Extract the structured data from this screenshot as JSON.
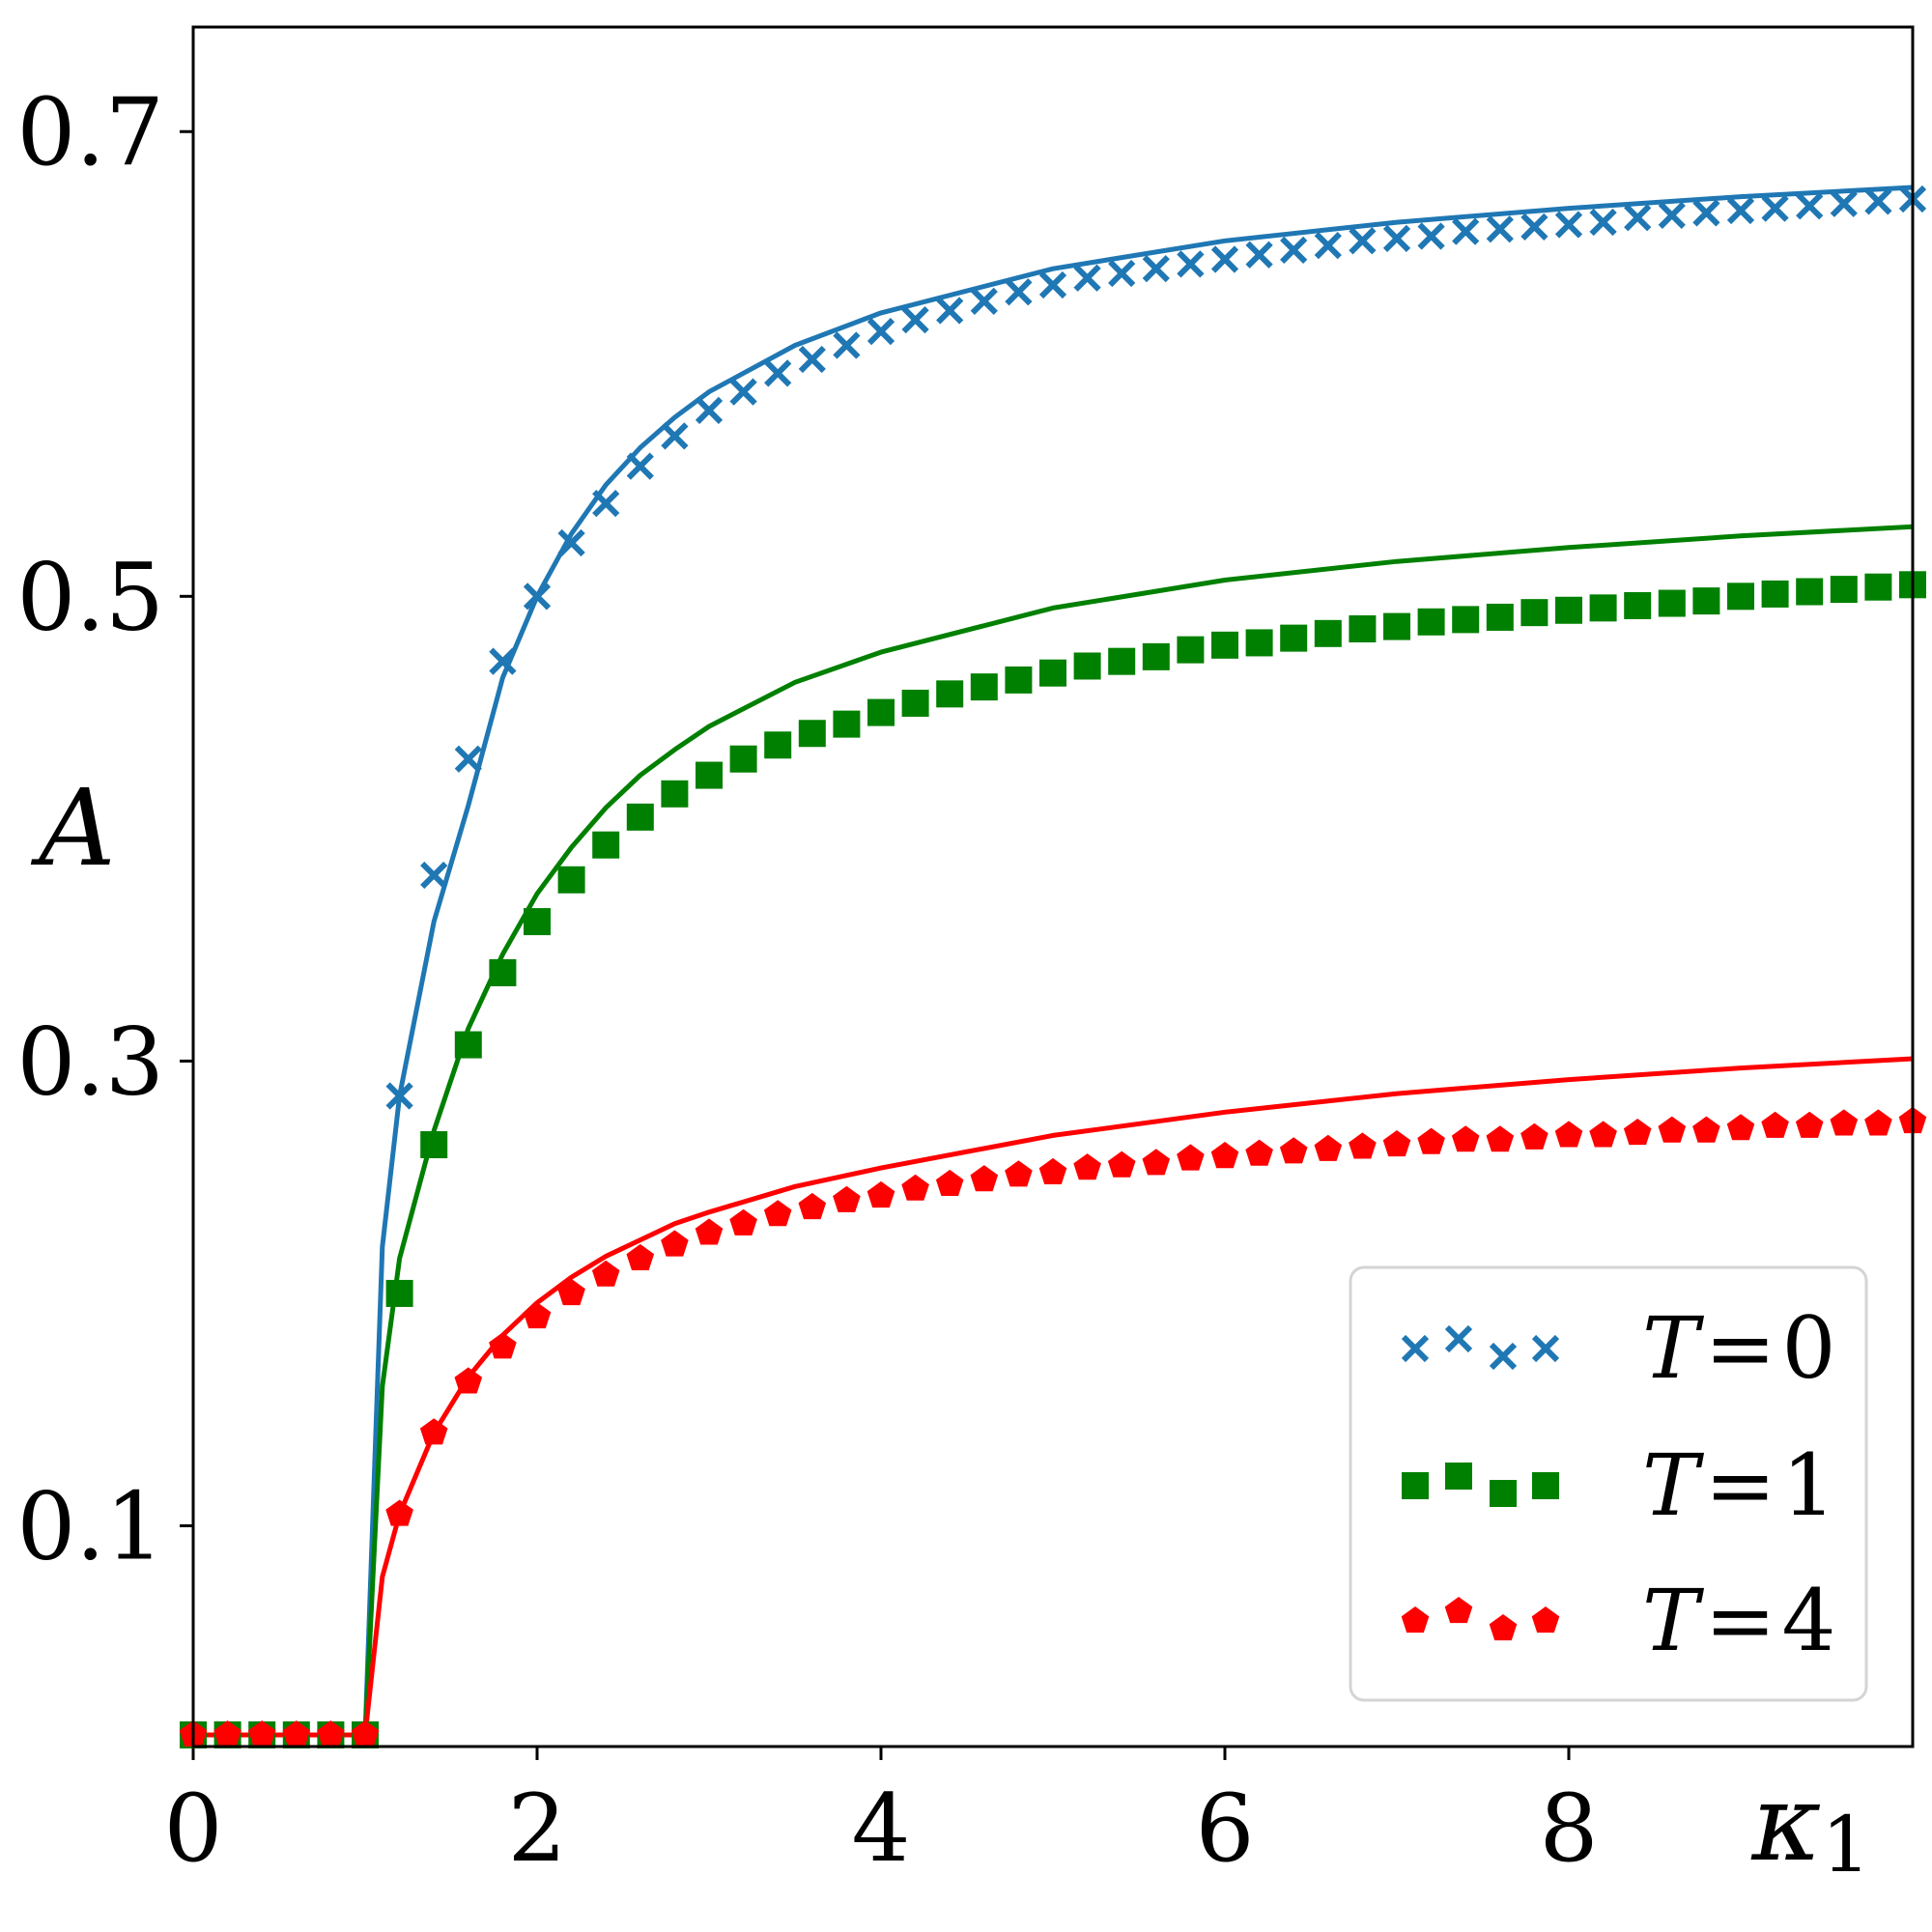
{
  "chart_data": {
    "type": "line",
    "title": "",
    "xlabel": "κ",
    "xlabel_sub": "1",
    "ylabel": "A",
    "xlim": [
      0,
      10
    ],
    "ylim": [
      0.005,
      0.745
    ],
    "x_ticks": [
      0,
      2,
      4,
      6,
      8
    ],
    "x_tick_labels": [
      "0",
      "2",
      "4",
      "6",
      "8"
    ],
    "y_ticks": [
      0.1,
      0.3,
      0.5,
      0.7
    ],
    "y_tick_labels": [
      "0.1",
      "0.3",
      "0.5",
      "0.7"
    ],
    "grid": false,
    "legend_position": "bottom-right",
    "series": [
      {
        "name": "T = 0",
        "name_parts": [
          "T",
          "=",
          "0"
        ],
        "color": "#1f77b4",
        "marker": "x",
        "line_x": [
          0,
          0.99,
          1.0,
          1.1,
          1.2,
          1.4,
          1.6,
          1.8,
          2.0,
          2.2,
          2.4,
          2.6,
          2.8,
          3.0,
          3.5,
          4.0,
          5.0,
          6.0,
          7.0,
          8.0,
          9.0,
          10.0
        ],
        "line_y": [
          0.01,
          0.01,
          0.01,
          0.22,
          0.285,
          0.36,
          0.41,
          0.465,
          0.5,
          0.527,
          0.548,
          0.564,
          0.577,
          0.588,
          0.608,
          0.622,
          0.641,
          0.653,
          0.661,
          0.667,
          0.672,
          0.676
        ],
        "marker_x": [
          1.2,
          1.4,
          1.6,
          1.8,
          2.0,
          2.2,
          2.4,
          2.6,
          2.8,
          3.0,
          3.2,
          3.4,
          3.6,
          3.8,
          4.0,
          4.2,
          4.4,
          4.6,
          4.8,
          5.0,
          5.2,
          5.4,
          5.6,
          5.8,
          6.0,
          6.2,
          6.4,
          6.6,
          6.8,
          7.0,
          7.2,
          7.4,
          7.6,
          7.8,
          8.0,
          8.2,
          8.4,
          8.6,
          8.8,
          9.0,
          9.2,
          9.4,
          9.6,
          9.8,
          10.0
        ],
        "marker_y": [
          0.285,
          0.38,
          0.43,
          0.472,
          0.5,
          0.523,
          0.54,
          0.556,
          0.569,
          0.58,
          0.588,
          0.596,
          0.602,
          0.608,
          0.614,
          0.619,
          0.623,
          0.627,
          0.631,
          0.634,
          0.637,
          0.639,
          0.641,
          0.643,
          0.645,
          0.647,
          0.649,
          0.651,
          0.653,
          0.654,
          0.655,
          0.657,
          0.658,
          0.659,
          0.66,
          0.661,
          0.663,
          0.664,
          0.665,
          0.666,
          0.667,
          0.668,
          0.669,
          0.67,
          0.671
        ]
      },
      {
        "name": "T = 1",
        "name_parts": [
          "T",
          "=",
          "1"
        ],
        "color": "#008000",
        "marker": "s",
        "line_x": [
          0,
          0.99,
          1.0,
          1.1,
          1.2,
          1.4,
          1.6,
          1.8,
          2.0,
          2.2,
          2.4,
          2.6,
          2.8,
          3.0,
          3.5,
          4.0,
          5.0,
          6.0,
          7.0,
          8.0,
          9.0,
          10.0
        ],
        "line_y": [
          0.01,
          0.01,
          0.01,
          0.16,
          0.215,
          0.27,
          0.314,
          0.346,
          0.372,
          0.392,
          0.409,
          0.423,
          0.434,
          0.444,
          0.463,
          0.476,
          0.495,
          0.507,
          0.515,
          0.521,
          0.526,
          0.53
        ],
        "marker_x": [
          0,
          0.2,
          0.4,
          0.6,
          0.8,
          1.0,
          1.2,
          1.4,
          1.6,
          1.8,
          2.0,
          2.2,
          2.4,
          2.6,
          2.8,
          3.0,
          3.2,
          3.4,
          3.6,
          3.8,
          4.0,
          4.2,
          4.4,
          4.6,
          4.8,
          5.0,
          5.2,
          5.4,
          5.6,
          5.8,
          6.0,
          6.2,
          6.4,
          6.6,
          6.8,
          7.0,
          7.2,
          7.4,
          7.6,
          7.8,
          8.0,
          8.2,
          8.4,
          8.6,
          8.8,
          9.0,
          9.2,
          9.4,
          9.6,
          9.8,
          10.0
        ],
        "marker_y": [
          0.01,
          0.01,
          0.01,
          0.01,
          0.01,
          0.01,
          0.2,
          0.264,
          0.307,
          0.338,
          0.36,
          0.378,
          0.393,
          0.405,
          0.415,
          0.423,
          0.43,
          0.436,
          0.441,
          0.445,
          0.45,
          0.454,
          0.458,
          0.461,
          0.464,
          0.467,
          0.47,
          0.472,
          0.474,
          0.477,
          0.479,
          0.48,
          0.482,
          0.484,
          0.486,
          0.487,
          0.489,
          0.49,
          0.491,
          0.493,
          0.494,
          0.495,
          0.496,
          0.497,
          0.498,
          0.5,
          0.501,
          0.502,
          0.503,
          0.504,
          0.505
        ]
      },
      {
        "name": "T = 4",
        "name_parts": [
          "T",
          "=",
          "4"
        ],
        "color": "#ff0000",
        "marker": "p",
        "line_x": [
          0,
          0.99,
          1.0,
          1.1,
          1.2,
          1.4,
          1.6,
          1.8,
          2.0,
          2.2,
          2.4,
          2.6,
          2.8,
          3.0,
          3.5,
          4.0,
          5.0,
          6.0,
          7.0,
          8.0,
          9.0,
          10.0
        ],
        "line_y": [
          0.01,
          0.01,
          0.01,
          0.078,
          0.105,
          0.14,
          0.164,
          0.182,
          0.196,
          0.207,
          0.216,
          0.223,
          0.23,
          0.235,
          0.246,
          0.254,
          0.268,
          0.278,
          0.286,
          0.292,
          0.297,
          0.301
        ],
        "marker_x": [
          0,
          0.2,
          0.4,
          0.6,
          0.8,
          1.0,
          1.2,
          1.4,
          1.6,
          1.8,
          2.0,
          2.2,
          2.4,
          2.6,
          2.8,
          3.0,
          3.2,
          3.4,
          3.6,
          3.8,
          4.0,
          4.2,
          4.4,
          4.6,
          4.8,
          5.0,
          5.2,
          5.4,
          5.6,
          5.8,
          6.0,
          6.2,
          6.4,
          6.6,
          6.8,
          7.0,
          7.2,
          7.4,
          7.6,
          7.8,
          8.0,
          8.2,
          8.4,
          8.6,
          8.8,
          9.0,
          9.2,
          9.4,
          9.6,
          9.8,
          10.0
        ],
        "marker_y": [
          0.01,
          0.01,
          0.01,
          0.01,
          0.01,
          0.01,
          0.105,
          0.14,
          0.162,
          0.177,
          0.19,
          0.2,
          0.208,
          0.215,
          0.221,
          0.226,
          0.23,
          0.234,
          0.237,
          0.24,
          0.242,
          0.245,
          0.247,
          0.249,
          0.251,
          0.252,
          0.254,
          0.255,
          0.256,
          0.258,
          0.259,
          0.26,
          0.261,
          0.262,
          0.263,
          0.264,
          0.265,
          0.266,
          0.266,
          0.267,
          0.268,
          0.268,
          0.269,
          0.27,
          0.27,
          0.271,
          0.272,
          0.272,
          0.273,
          0.273,
          0.274
        ]
      }
    ]
  }
}
